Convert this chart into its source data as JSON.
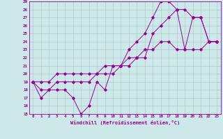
{
  "xlabel": "Windchill (Refroidissement éolien,°C)",
  "line_color": "#990099",
  "bg_color": "#cce8e8",
  "grid_color": "#b0c8c8",
  "ylim": [
    15,
    29
  ],
  "xlim": [
    -0.5,
    23.5
  ],
  "yticks": [
    15,
    16,
    17,
    18,
    19,
    20,
    21,
    22,
    23,
    24,
    25,
    26,
    27,
    28,
    29
  ],
  "xticks": [
    0,
    1,
    2,
    3,
    4,
    5,
    6,
    7,
    8,
    9,
    10,
    11,
    12,
    13,
    14,
    15,
    16,
    17,
    18,
    19,
    20,
    21,
    22,
    23
  ],
  "line1_x": [
    0,
    1,
    2,
    3,
    4,
    5,
    6,
    7,
    8,
    9,
    10,
    11,
    12,
    13,
    14,
    15,
    16,
    17,
    18,
    19,
    20,
    21,
    22,
    23
  ],
  "line1_y": [
    19,
    17,
    18,
    18,
    18,
    17,
    15,
    16,
    19,
    18,
    21,
    21,
    23,
    24,
    25,
    27,
    29,
    29,
    28,
    23,
    27,
    27,
    24,
    24
  ],
  "line2_x": [
    0,
    1,
    2,
    3,
    4,
    5,
    6,
    7,
    8,
    9,
    10,
    11,
    12,
    13,
    14,
    15,
    16,
    17,
    18,
    19,
    20,
    21,
    22,
    23
  ],
  "line2_y": [
    19,
    18,
    18,
    19,
    19,
    19,
    19,
    19,
    20,
    20,
    20,
    21,
    21,
    22,
    22,
    25,
    26,
    27,
    28,
    28,
    27,
    27,
    24,
    24
  ],
  "line3_x": [
    0,
    1,
    2,
    3,
    4,
    5,
    6,
    7,
    8,
    9,
    10,
    11,
    12,
    13,
    14,
    15,
    16,
    17,
    18,
    19,
    20,
    21,
    22,
    23
  ],
  "line3_y": [
    19,
    19,
    19,
    20,
    20,
    20,
    20,
    20,
    20,
    21,
    21,
    21,
    22,
    22,
    23,
    23,
    24,
    24,
    23,
    23,
    23,
    23,
    24,
    24
  ]
}
